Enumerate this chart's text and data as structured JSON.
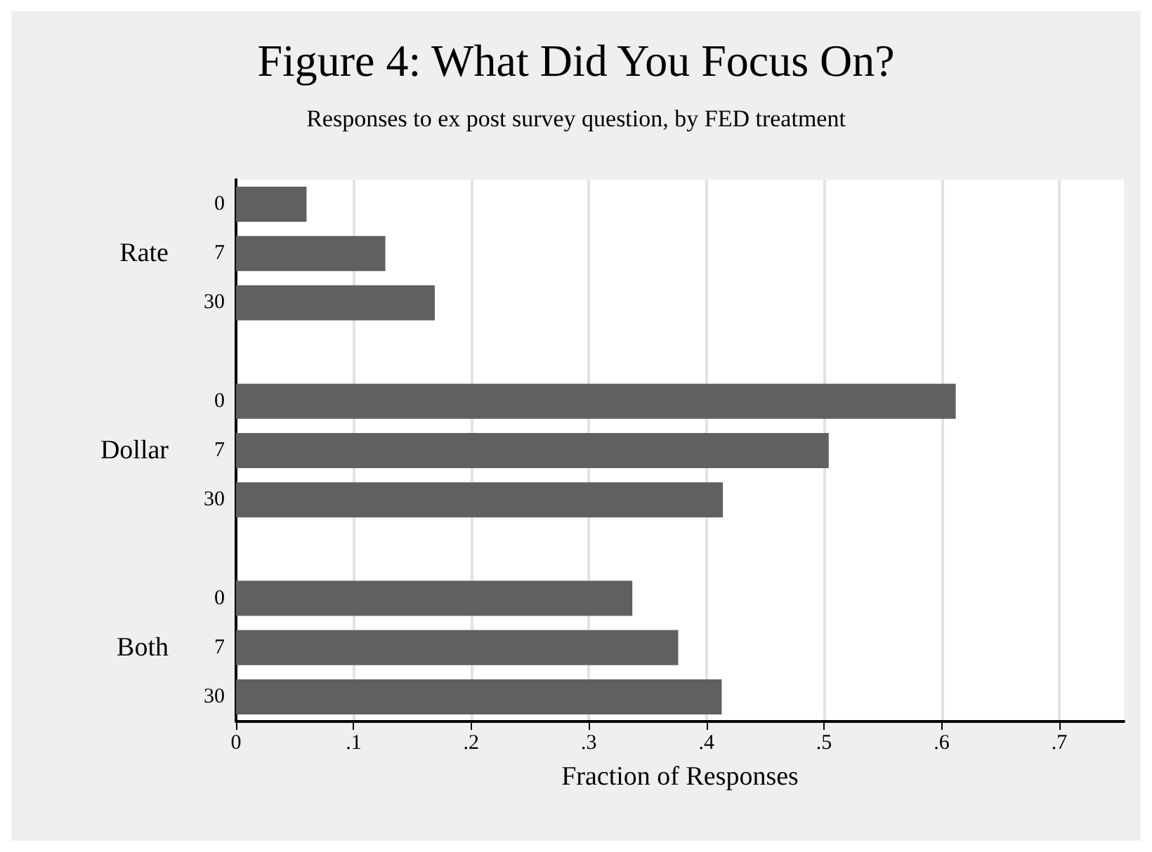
{
  "chart_data": {
    "type": "bar",
    "orientation": "horizontal",
    "title": "Figure 4: What Did You Focus On?",
    "subtitle": "Responses to ex post survey question, by FED treatment",
    "xlabel": "Fraction of Responses",
    "categories": [
      "0",
      "7",
      "30",
      null,
      "0",
      "7",
      "30",
      null,
      "0",
      "7",
      "30"
    ],
    "values": [
      0.06,
      0.127,
      0.169,
      null,
      0.612,
      0.504,
      0.414,
      null,
      0.337,
      0.376,
      0.413
    ],
    "color": "#606060",
    "annotations": [
      "Rate",
      "Dollar",
      "Both"
    ],
    "xlim": [
      0,
      0.755
    ],
    "xticks": [
      {
        "value": 0,
        "label": "0"
      },
      {
        "value": 0.1,
        "label": ".1"
      },
      {
        "value": 0.2,
        "label": ".2"
      },
      {
        "value": 0.3,
        "label": ".3"
      },
      {
        "value": 0.4,
        "label": ".4"
      },
      {
        "value": 0.5,
        "label": ".5"
      },
      {
        "value": 0.6,
        "label": ".6"
      },
      {
        "value": 0.7,
        "label": ".7"
      }
    ],
    "grid": "x"
  }
}
